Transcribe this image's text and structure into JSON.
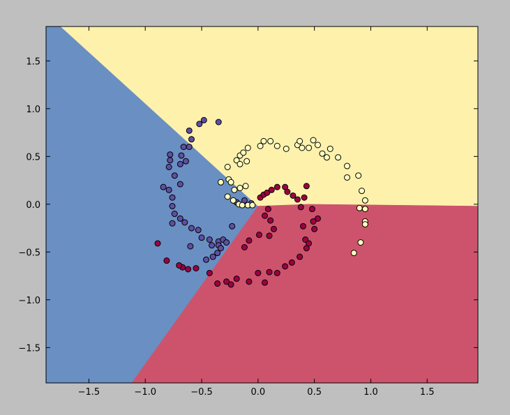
{
  "chart_data": {
    "type": "scatter",
    "xlim": [
      -1.88,
      1.95
    ],
    "ylim": [
      -1.87,
      1.86
    ],
    "xticks": [
      {
        "value": -1.5,
        "label": "−1.5"
      },
      {
        "value": -1.0,
        "label": "−1.0"
      },
      {
        "value": -0.5,
        "label": "−0.5"
      },
      {
        "value": 0.0,
        "label": "0.0"
      },
      {
        "value": 0.5,
        "label": "0.5"
      },
      {
        "value": 1.0,
        "label": "1.0"
      },
      {
        "value": 1.5,
        "label": "1.5"
      }
    ],
    "yticks": [
      {
        "value": -1.5,
        "label": "−1.5"
      },
      {
        "value": -1.0,
        "label": "−1.0"
      },
      {
        "value": -0.5,
        "label": "−0.5"
      },
      {
        "value": 0.0,
        "label": "0.0"
      },
      {
        "value": 0.5,
        "label": "0.5"
      },
      {
        "value": 1.0,
        "label": "1.0"
      },
      {
        "value": 1.5,
        "label": "1.5"
      }
    ],
    "regions": [
      {
        "color": "#6a8fc3",
        "x": [
          -1.88,
          -1.75,
          0.0,
          -1.12,
          -1.88
        ],
        "y": [
          1.86,
          1.86,
          -0.02,
          -1.87,
          -1.87
        ]
      },
      {
        "color": "#fdf1ac",
        "x": [
          -1.75,
          1.95,
          1.95,
          0.45,
          0.0
        ],
        "y": [
          1.86,
          1.86,
          -0.02,
          0.0,
          -0.02
        ]
      },
      {
        "color": "#cd536c",
        "x": [
          0.0,
          0.45,
          1.95,
          1.95,
          -1.12
        ],
        "y": [
          -0.02,
          0.0,
          -0.02,
          -1.87,
          -1.87
        ]
      }
    ],
    "series": [
      {
        "color": "#5e4fa2",
        "x": [
          -0.48,
          -0.52,
          -0.35,
          -0.61,
          -0.59,
          -0.66,
          -0.61,
          -0.78,
          -0.68,
          -0.78,
          -0.64,
          -0.79,
          -0.69,
          -0.74,
          -0.84,
          -0.69,
          -0.79,
          -0.76,
          -0.76,
          -0.74,
          -0.69,
          -0.76,
          -0.65,
          -0.59,
          -0.53,
          -0.5,
          -0.6,
          -0.43,
          -0.35,
          -0.35,
          -0.31,
          -0.33,
          -0.36,
          -0.4,
          -0.46,
          -0.41,
          -0.28,
          -0.23,
          -0.19,
          -0.12,
          -0.06
        ],
        "values": [
          0.88,
          0.84,
          0.86,
          0.77,
          0.68,
          0.6,
          0.6,
          0.52,
          0.51,
          0.46,
          0.45,
          0.39,
          0.42,
          0.3,
          0.18,
          0.21,
          0.15,
          0.07,
          -0.02,
          -0.1,
          -0.15,
          -0.2,
          -0.19,
          -0.25,
          -0.27,
          -0.35,
          -0.44,
          -0.37,
          -0.39,
          -0.43,
          -0.37,
          -0.46,
          -0.51,
          -0.55,
          -0.58,
          -0.43,
          -0.4,
          -0.23,
          0.02,
          0.04,
          0.01
        ]
      },
      {
        "color": "#9e0142",
        "x": [
          0.02,
          0.05,
          0.08,
          0.12,
          0.17,
          0.24,
          0.26,
          0.31,
          0.35,
          0.41,
          0.43,
          0.38,
          0.48,
          0.53,
          0.49,
          0.4,
          0.5,
          0.42,
          0.45,
          0.43,
          0.37,
          0.3,
          0.24,
          0.17,
          0.1,
          0.06,
          0.0,
          -0.08,
          -0.19,
          -0.24,
          -0.36,
          -0.28,
          -0.43,
          -0.55,
          -0.62,
          -0.67,
          -0.7,
          -0.81,
          -0.89,
          0.09,
          0.11,
          0.14,
          0.1,
          0.01,
          -0.08,
          -0.12,
          0.06
        ],
        "values": [
          0.07,
          0.1,
          0.12,
          0.15,
          0.18,
          0.18,
          0.13,
          0.09,
          0.05,
          0.07,
          0.19,
          -0.03,
          -0.05,
          -0.15,
          -0.18,
          -0.23,
          -0.26,
          -0.37,
          -0.41,
          -0.46,
          -0.55,
          -0.61,
          -0.65,
          -0.72,
          -0.71,
          -0.82,
          -0.72,
          -0.81,
          -0.78,
          -0.84,
          -0.83,
          -0.81,
          -0.72,
          -0.67,
          -0.68,
          -0.66,
          -0.64,
          -0.59,
          -0.41,
          -0.05,
          -0.17,
          -0.26,
          -0.33,
          -0.32,
          -0.38,
          -0.45,
          -0.12
        ]
      },
      {
        "color": "#ffffbf",
        "x": [
          -0.33,
          -0.26,
          -0.27,
          -0.19,
          -0.16,
          -0.13,
          -0.09,
          0.02,
          0.05,
          0.11,
          0.17,
          0.25,
          0.35,
          0.39,
          0.45,
          0.49,
          0.53,
          0.57,
          0.61,
          0.64,
          0.71,
          0.79,
          0.79,
          0.89,
          0.92,
          0.95,
          0.9,
          0.95,
          0.95,
          0.95,
          0.91,
          0.85,
          0.37,
          -0.1,
          -0.16,
          -0.24,
          -0.21,
          -0.27,
          -0.22,
          -0.17,
          -0.14,
          -0.09,
          -0.05,
          -0.16,
          -0.11
        ],
        "values": [
          0.23,
          0.26,
          0.39,
          0.46,
          0.51,
          0.54,
          0.59,
          0.61,
          0.66,
          0.66,
          0.61,
          0.58,
          0.62,
          0.59,
          0.59,
          0.67,
          0.62,
          0.53,
          0.49,
          0.58,
          0.49,
          0.4,
          0.28,
          0.3,
          0.14,
          0.04,
          -0.04,
          -0.05,
          -0.18,
          -0.21,
          -0.4,
          -0.51,
          0.66,
          0.45,
          0.42,
          0.23,
          0.15,
          0.08,
          0.04,
          0.0,
          -0.01,
          -0.01,
          -0.01,
          0.17,
          0.19
        ]
      }
    ]
  }
}
